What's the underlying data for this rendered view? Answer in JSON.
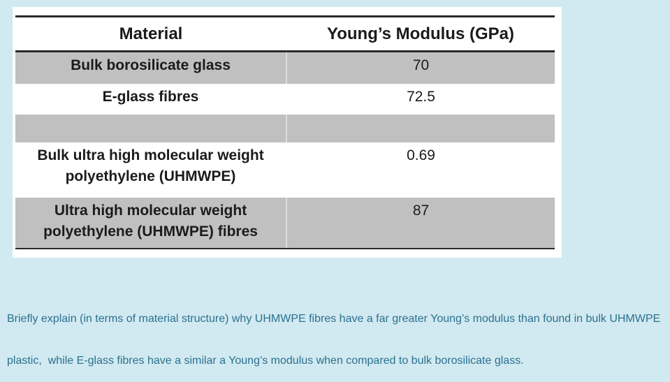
{
  "page": {
    "background_color": "#d1e9f0",
    "panel_color": "#ffffff"
  },
  "table": {
    "columns": [
      {
        "label": "Material"
      },
      {
        "label": "Young’s Modulus (GPa)"
      }
    ],
    "rows": [
      {
        "material": "Bulk borosilicate glass",
        "modulus": "70"
      },
      {
        "material": "E-glass fibres",
        "modulus": "72.5"
      },
      {
        "material": "",
        "modulus": ""
      },
      {
        "material": "Bulk ultra high molecular weight polyethylene (UHMWPE)",
        "modulus": "0.69"
      },
      {
        "material": "Ultra high molecular weight polyethylene (UHMWPE) fibres",
        "modulus": "87"
      }
    ],
    "stripe_color": "#c0c0c0",
    "border_color": "#2a2a2a"
  },
  "question": {
    "color": "#2b7190",
    "text": "Briefly explain (in terms of material structure) why UHMWPE fibres have a far greater Young’s modulus than found in bulk UHMWPE plastic,  while E-glass fibres have a similar a Young’s modulus when compared to bulk borosilicate glass.",
    "lines": [
      "Briefly explain (in terms of material structure) why UHMWPE fibres have a far greater Young’s modulus than found in bulk UHMWPE",
      "plastic,  while E-glass fibres have a similar a Young’s modulus when compared to bulk borosilicate glass."
    ]
  },
  "chart_data": {
    "type": "table",
    "title": "",
    "columns": [
      "Material",
      "Young’s Modulus (GPa)"
    ],
    "rows": [
      [
        "Bulk borosilicate glass",
        70
      ],
      [
        "E-glass fibres",
        72.5
      ],
      [
        "",
        null
      ],
      [
        "Bulk ultra high molecular weight polyethylene (UHMWPE)",
        0.69
      ],
      [
        "Ultra high molecular weight polyethylene (UHMWPE) fibres",
        87
      ]
    ]
  }
}
